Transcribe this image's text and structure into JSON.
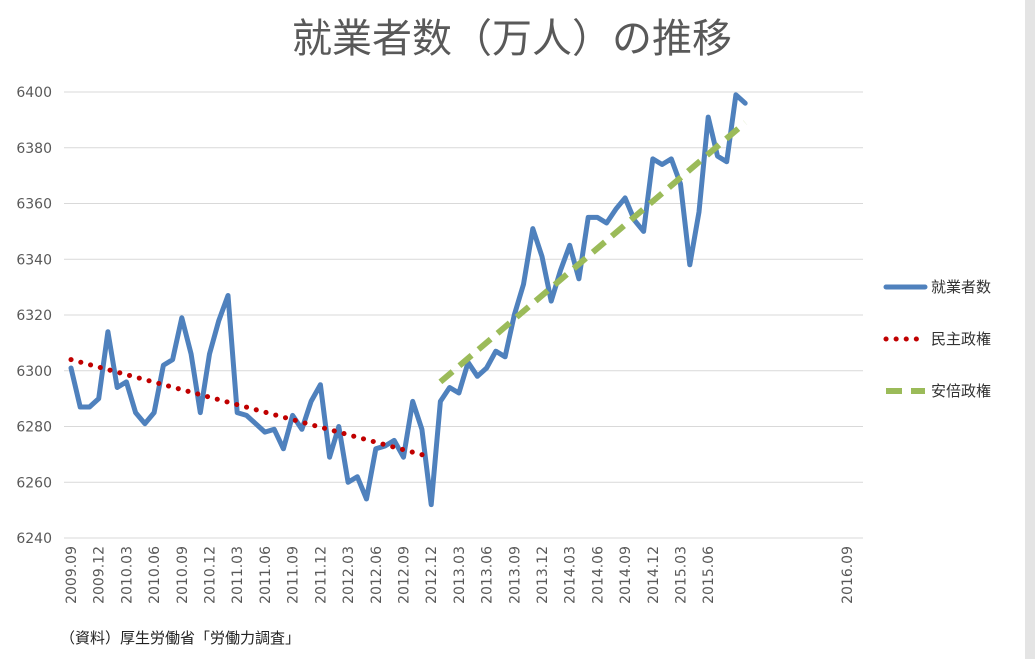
{
  "chart_data": {
    "type": "line",
    "title": "就業者数（万人）の推移",
    "source": "（資料）厚生労働省「労働力調査」",
    "ylim": [
      6240,
      6400
    ],
    "yticks": [
      6240,
      6260,
      6280,
      6300,
      6320,
      6340,
      6360,
      6380,
      6400
    ],
    "grid": true,
    "legend_position": "right",
    "x_start": "2009.09",
    "x_end": "2016.10",
    "xtick_labels": [
      "2009.09",
      "2009.12",
      "2010.03",
      "2010.06",
      "2010.09",
      "2010.12",
      "2011.03",
      "2011.06",
      "2011.09",
      "2011.12",
      "2012.03",
      "2012.06",
      "2012.09",
      "2012.12",
      "2013.03",
      "2013.06",
      "2013.09",
      "2013.12",
      "2014.03",
      "2014.06",
      "2014.09",
      "2014.12",
      "2015.03",
      "2015.06",
      "2016.09"
    ],
    "series": [
      {
        "name": "就業者数",
        "color": "#4f81bd",
        "style": "solid",
        "x": [
          "2009.09",
          "2009.10",
          "2009.11",
          "2009.12",
          "2010.01",
          "2010.02",
          "2010.03",
          "2010.04",
          "2010.05",
          "2010.06",
          "2010.07",
          "2010.08",
          "2010.09",
          "2010.10",
          "2010.11",
          "2010.12",
          "2011.01",
          "2011.02",
          "2011.03",
          "2011.04",
          "2011.05",
          "2011.06",
          "2011.07",
          "2011.08",
          "2011.09",
          "2011.10",
          "2011.11",
          "2011.12",
          "2012.01",
          "2012.02",
          "2012.03",
          "2012.04",
          "2012.05",
          "2012.06",
          "2012.07",
          "2012.08",
          "2012.09",
          "2012.10",
          "2012.11",
          "2012.12",
          "2013.01",
          "2013.02",
          "2013.03",
          "2013.04",
          "2013.05",
          "2013.06",
          "2013.07",
          "2013.08",
          "2013.09",
          "2013.10",
          "2013.11",
          "2013.12",
          "2014.01",
          "2014.02",
          "2014.03",
          "2014.04",
          "2014.05",
          "2014.06",
          "2014.07",
          "2014.08",
          "2014.09",
          "2014.10",
          "2014.11",
          "2014.12",
          "2015.01",
          "2015.02",
          "2015.03",
          "2015.04",
          "2015.05",
          "2015.06",
          "2015.07",
          "2015.08",
          "2015.09",
          "2015.10"
        ],
        "values": [
          6301,
          6287,
          6287,
          6290,
          6314,
          6294,
          6296,
          6285,
          6281,
          6285,
          6302,
          6304,
          6319,
          6306,
          6285,
          6306,
          6318,
          6327,
          6285,
          6284,
          6281,
          6278,
          6279,
          6272,
          6284,
          6279,
          6289,
          6295,
          6269,
          6280,
          6260,
          6262,
          6254,
          6272,
          6273,
          6275,
          6269,
          6289,
          6279,
          6252,
          6289,
          6294,
          6292,
          6303,
          6298,
          6301,
          6307,
          6305,
          6320,
          6331,
          6351,
          6341,
          6325,
          6336,
          6345,
          6333,
          6355,
          6355,
          6353,
          6358,
          6362,
          6354,
          6350,
          6376,
          6374,
          6376,
          6367,
          6338,
          6357,
          6391,
          6377,
          6375,
          6399,
          6396
        ]
      },
      {
        "name": "民主政権",
        "color": "#c00000",
        "style": "dotted",
        "x": [
          "2009.09",
          "2012.12"
        ],
        "values": [
          6304,
          6269
        ]
      },
      {
        "name": "安倍政権",
        "color": "#9bbb59",
        "style": "dashed",
        "x": [
          "2013.01",
          "2015.10"
        ],
        "values": [
          6296,
          6389
        ]
      }
    ]
  }
}
